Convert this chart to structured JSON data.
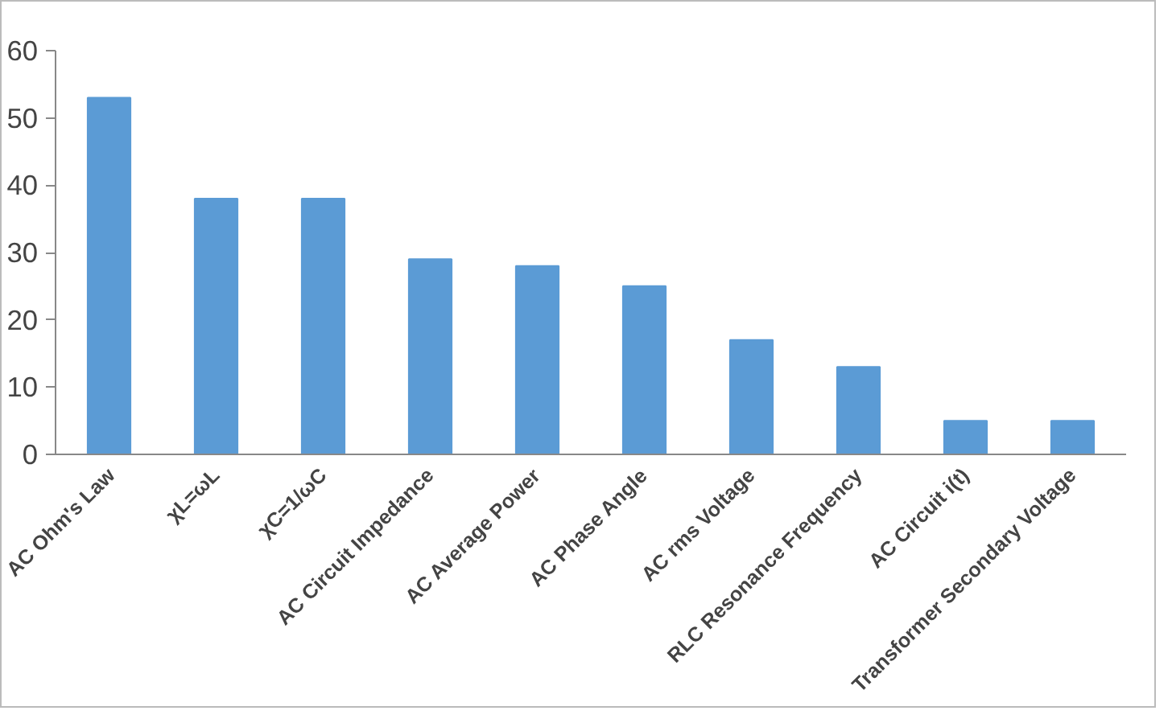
{
  "chart_data": {
    "type": "bar",
    "categories": [
      "AC Ohm's Law",
      "χL=ωL",
      "χC=1/ωC",
      "AC Circuit Impedance",
      "AC Average Power",
      "AC Phase Angle",
      "AC rms Voltage",
      "RLC Resonance Frequency",
      "AC Circuit i(t)",
      "Transformer Secondary Voltage"
    ],
    "values": [
      53,
      38,
      38,
      29,
      28,
      25,
      17,
      13,
      5,
      5
    ],
    "color": "#5b9bd5",
    "ylim": [
      0,
      60
    ],
    "yticks": [
      0,
      10,
      20,
      30,
      40,
      50,
      60
    ]
  }
}
